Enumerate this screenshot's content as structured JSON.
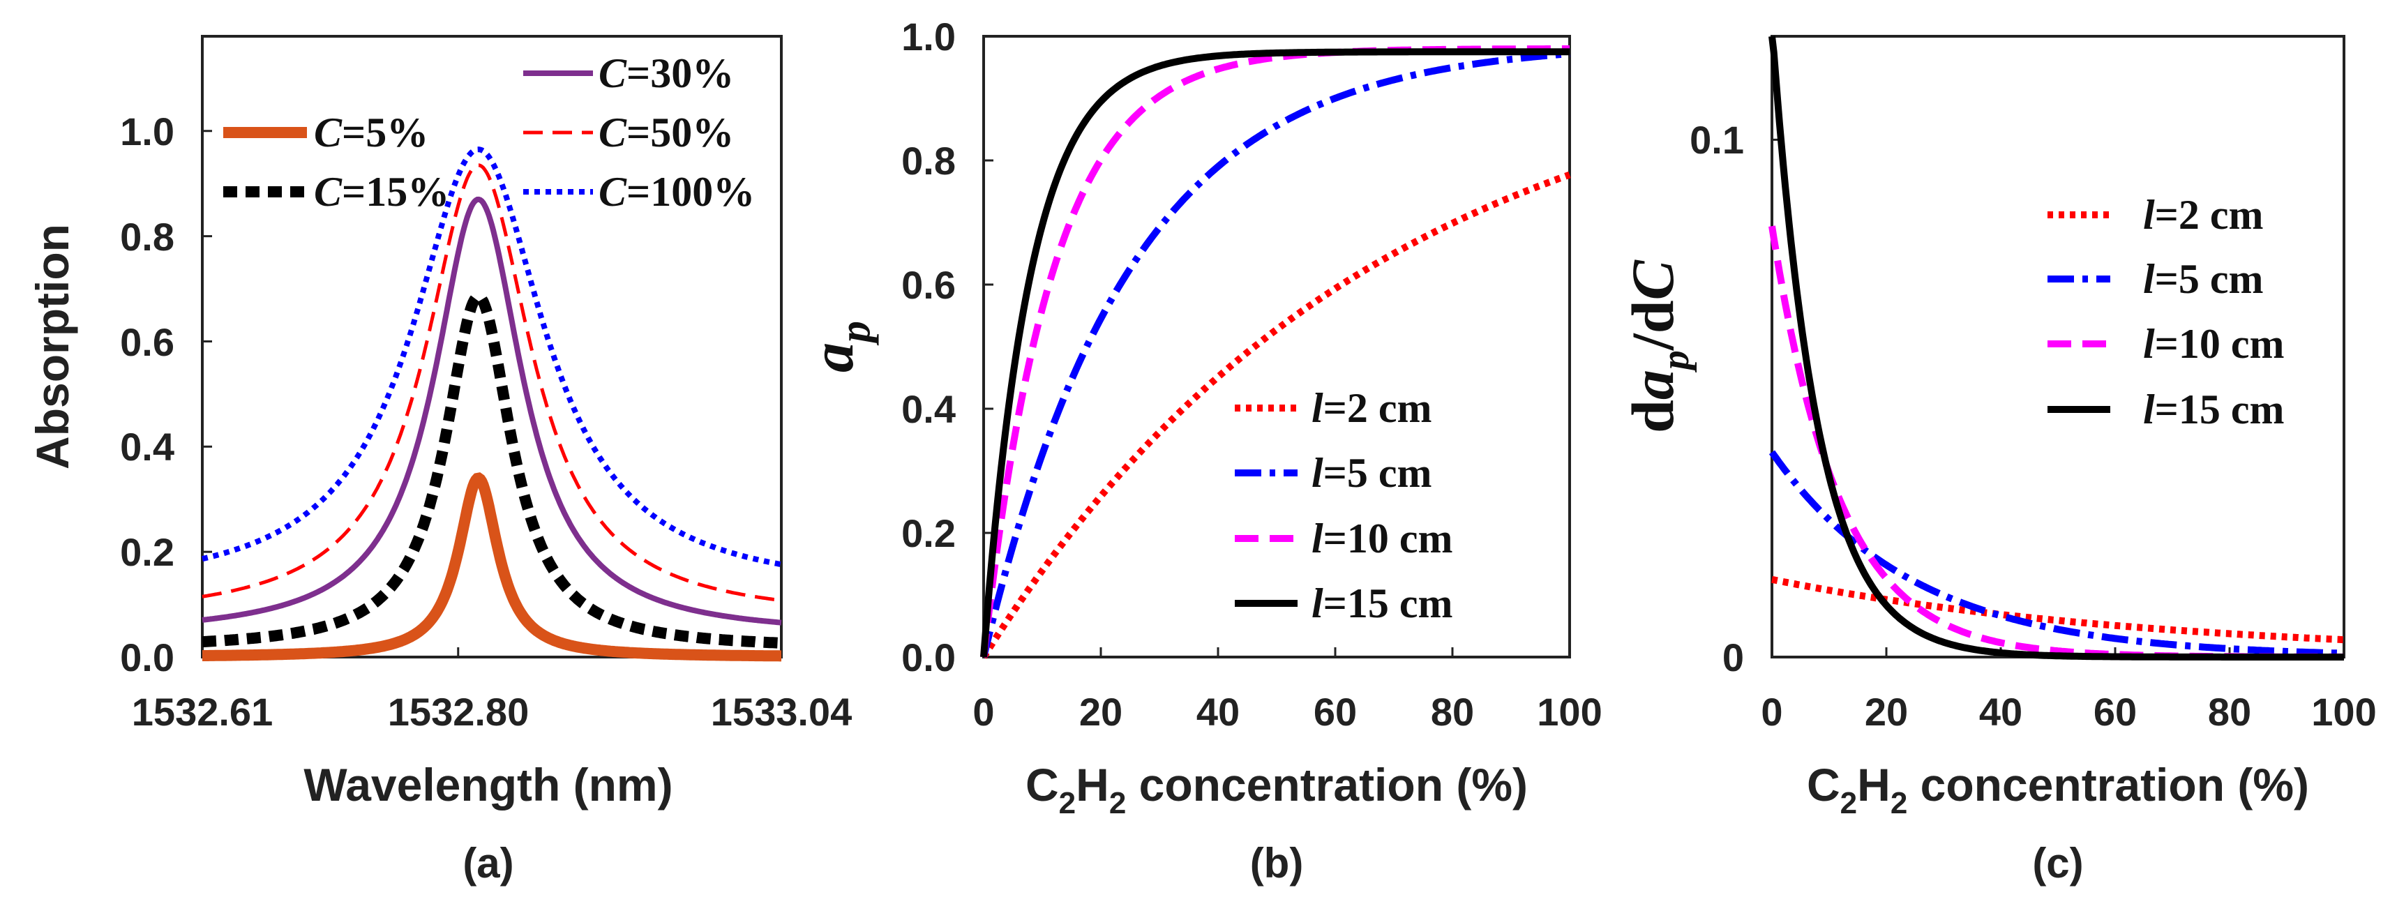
{
  "chart_data": [
    {
      "type": "line",
      "panel_label": "(a)",
      "xlabel": "Wavelength (nm)",
      "ylabel": "Absorption",
      "xlim": [
        1532.61,
        1533.04
      ],
      "ylim": [
        0,
        1.18
      ],
      "x_ticks": [
        "1532.61",
        "1532.80",
        "1533.04"
      ],
      "y_ticks": [
        "0.0",
        "0.2",
        "0.4",
        "0.6",
        "0.8",
        "1.0"
      ],
      "series": [
        {
          "name": "C=5%",
          "name_var": "C",
          "name_rest": "=5%",
          "color": "#D95319",
          "style": "solid",
          "peak_x": 1532.815,
          "peak": 0.34,
          "baseline": 0.0,
          "hwhm": 0.018
        },
        {
          "name": "C=15%",
          "name_var": "C",
          "name_rest": "=15%",
          "color": "#000000",
          "style": "dotted",
          "peak_x": 1532.815,
          "peak": 0.685,
          "baseline": 0.015,
          "hwhm": 0.03
        },
        {
          "name": "C=30%",
          "name_var": "C",
          "name_rest": "=30%",
          "color": "#7E2F8E",
          "style": "solid",
          "peak_x": 1532.815,
          "peak": 0.87,
          "baseline": 0.04,
          "hwhm": 0.04
        },
        {
          "name": "C=50%",
          "name_var": "C",
          "name_rest": "=50%",
          "color": "#FF0000",
          "style": "dashed",
          "peak_x": 1532.815,
          "peak": 0.935,
          "baseline": 0.07,
          "hwhm": 0.048
        },
        {
          "name": "C=100%",
          "name_var": "C",
          "name_rest": "=100%",
          "color": "#0000FF",
          "style": "dotted",
          "peak_x": 1532.815,
          "peak": 0.965,
          "baseline": 0.12,
          "hwhm": 0.06
        }
      ]
    },
    {
      "type": "line",
      "panel_label": "(b)",
      "xlabel_main": "C",
      "xlabel_sub1": "2",
      "xlabel_mid": "H",
      "xlabel_sub2": "2",
      "xlabel_tail": " concentration (%)",
      "ylabel_main": "a",
      "ylabel_sub": "p",
      "xlim": [
        0,
        100
      ],
      "ylim": [
        0,
        1.0
      ],
      "x_ticks": [
        "0",
        "20",
        "40",
        "60",
        "80",
        "100"
      ],
      "y_ticks": [
        "0.0",
        "0.2",
        "0.4",
        "0.6",
        "0.8",
        "1.0"
      ],
      "series": [
        {
          "name": "l=2 cm",
          "name_var": "l",
          "name_rest": "=2 cm",
          "color": "#FF0000",
          "style": "dotted",
          "sat": 1.0,
          "k": 0.015
        },
        {
          "name": "l=5 cm",
          "name_var": "l",
          "name_rest": "=5 cm",
          "color": "#0000FF",
          "style": "dashdot",
          "sat": 0.99,
          "k": 0.04
        },
        {
          "name": "l=10 cm",
          "name_var": "l",
          "name_rest": "=10 cm",
          "color": "#FF00FF",
          "style": "dashed",
          "sat": 0.98,
          "k": 0.085
        },
        {
          "name": "l=15 cm",
          "name_var": "l",
          "name_rest": "=15 cm",
          "color": "#000000",
          "style": "solid",
          "sat": 0.975,
          "k": 0.125
        }
      ]
    },
    {
      "type": "line",
      "panel_label": "(c)",
      "xlabel_main": "C",
      "xlabel_sub1": "2",
      "xlabel_mid": "H",
      "xlabel_sub2": "2",
      "xlabel_tail": " concentration (%)",
      "ylabel_pre": "d",
      "ylabel_a": "a",
      "ylabel_sub": "p",
      "ylabel_post": "/d",
      "ylabel_c": "C",
      "xlim": [
        0,
        100
      ],
      "ylim": [
        0,
        0.12
      ],
      "x_ticks": [
        "0",
        "20",
        "40",
        "60",
        "80",
        "100"
      ],
      "y_ticks": [
        "0",
        "0.1"
      ],
      "series": [
        {
          "name": "l=2 cm",
          "name_var": "l",
          "name_rest": "=2 cm",
          "color": "#FF0000",
          "style": "dotted",
          "sat": 1.0,
          "k": 0.015
        },
        {
          "name": "l=5 cm",
          "name_var": "l",
          "name_rest": "=5 cm",
          "color": "#0000FF",
          "style": "dashdot",
          "sat": 0.99,
          "k": 0.04
        },
        {
          "name": "l=10 cm",
          "name_var": "l",
          "name_rest": "=10 cm",
          "color": "#FF00FF",
          "style": "dashed",
          "sat": 0.98,
          "k": 0.085
        },
        {
          "name": "l=15 cm",
          "name_var": "l",
          "name_rest": "=15 cm",
          "color": "#000000",
          "style": "solid",
          "sat": 0.975,
          "k": 0.125
        }
      ]
    }
  ]
}
